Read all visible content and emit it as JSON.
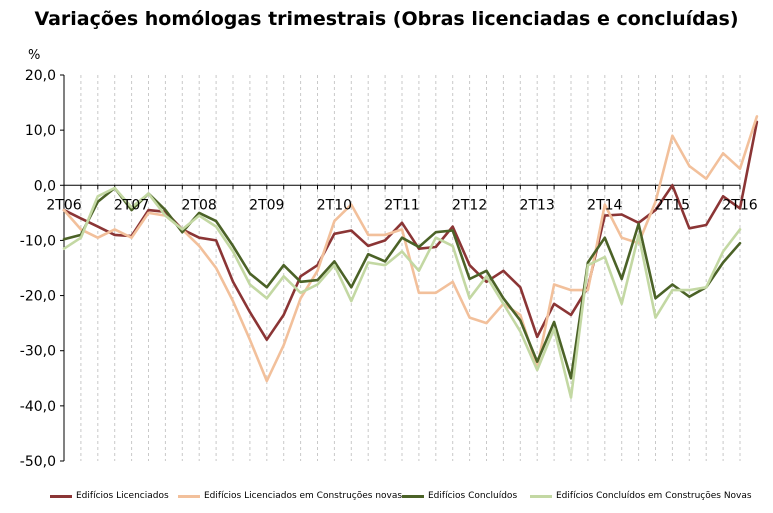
{
  "chart_data": {
    "type": "line",
    "title": "Variações homólogas trimestrais (Obras licenciadas e concluídas)",
    "ylabel": "%",
    "ylim": [
      -50,
      20
    ],
    "yticks": [
      20,
      10,
      0,
      -10,
      -20,
      -30,
      -40,
      -50
    ],
    "ytick_labels": [
      "20,0",
      "10,0",
      "0,0",
      "-10,0",
      "-20,0",
      "-30,0",
      "-40,0",
      "-50,0"
    ],
    "x_tick_labels": [
      {
        "index": 0,
        "label": "2T06"
      },
      {
        "index": 4,
        "label": "2T07"
      },
      {
        "index": 8,
        "label": "2T08"
      },
      {
        "index": 12,
        "label": "2T09"
      },
      {
        "index": 16,
        "label": "2T10"
      },
      {
        "index": 20,
        "label": "2T11"
      },
      {
        "index": 24,
        "label": "2T12"
      },
      {
        "index": 28,
        "label": "2T13"
      },
      {
        "index": 32,
        "label": "2T14"
      },
      {
        "index": 36,
        "label": "2T15"
      },
      {
        "index": 40,
        "label": "2T16"
      }
    ],
    "grid": "vertical",
    "legend_position": "bottom",
    "series": [
      {
        "name": "Edifícios Licenciados",
        "color": "#8b3535",
        "values": [
          -4.5,
          -6,
          -7.5,
          -9,
          -9.2,
          -4.5,
          -4.8,
          -8,
          -9.5,
          -10,
          -17.5,
          -23,
          -28,
          -23.5,
          -16.5,
          -14.5,
          -8.8,
          -8.2,
          -11,
          -10,
          -6.8,
          -11.5,
          -11.2,
          -7.5,
          -14.5,
          -17.5,
          -15.5,
          -18.5,
          -27.5,
          -21.5,
          -23.5,
          -18.5,
          -5.5,
          -5.3,
          -6.8,
          -4.5,
          0,
          -7.8,
          -7.2,
          -2,
          -4.2,
          11.5
        ]
      },
      {
        "name": "Edifícios Licenciados em Construções novas",
        "color": "#f2c09b",
        "values": [
          -4.5,
          -8,
          -9.5,
          -8,
          -9.5,
          -5,
          -5.5,
          -8,
          -11,
          -15,
          -21,
          -28,
          -35.5,
          -29,
          -20.5,
          -15.5,
          -6.5,
          -3.5,
          -9,
          -9,
          -8,
          -19.5,
          -19.5,
          -17.5,
          -24,
          -25,
          -21.5,
          -23.5,
          -33,
          -18,
          -19,
          -19,
          -3.5,
          -9.5,
          -10.5,
          -3,
          9,
          3.5,
          1.2,
          5.8,
          3,
          12.5
        ]
      },
      {
        "name": "Edifícios Concluídos",
        "color": "#4b6227",
        "values": [
          -9.8,
          -9,
          -3,
          -0.5,
          -4.5,
          -1.5,
          -4.5,
          -8.5,
          -5,
          -6.5,
          -11,
          -16,
          -18.5,
          -14.5,
          -17.5,
          -17.2,
          -13.8,
          -18.5,
          -12.5,
          -13.8,
          -9.5,
          -11.2,
          -8.5,
          -8.2,
          -17,
          -15.5,
          -20.5,
          -24.5,
          -32,
          -24.8,
          -35,
          -14,
          -9.5,
          -17,
          -7,
          -20.5,
          -18,
          -20.2,
          -18.5,
          -14,
          -10.5
        ]
      },
      {
        "name": "Edifícios Concluídos em Construções Novas",
        "color": "#c3d8a3",
        "values": [
          -11.5,
          -9.5,
          -2,
          -0.5,
          -4,
          -1.5,
          -5.5,
          -8,
          -5.5,
          -7.5,
          -12,
          -18,
          -20.5,
          -16.5,
          -19.5,
          -18,
          -14.5,
          -21,
          -14,
          -14.5,
          -12,
          -15.5,
          -9.5,
          -11,
          -20.5,
          -16.5,
          -21.5,
          -26.5,
          -33.5,
          -26,
          -38.5,
          -14.5,
          -13,
          -21.5,
          -9,
          -24,
          -19,
          -19,
          -18.5,
          -12,
          -8
        ]
      }
    ]
  }
}
